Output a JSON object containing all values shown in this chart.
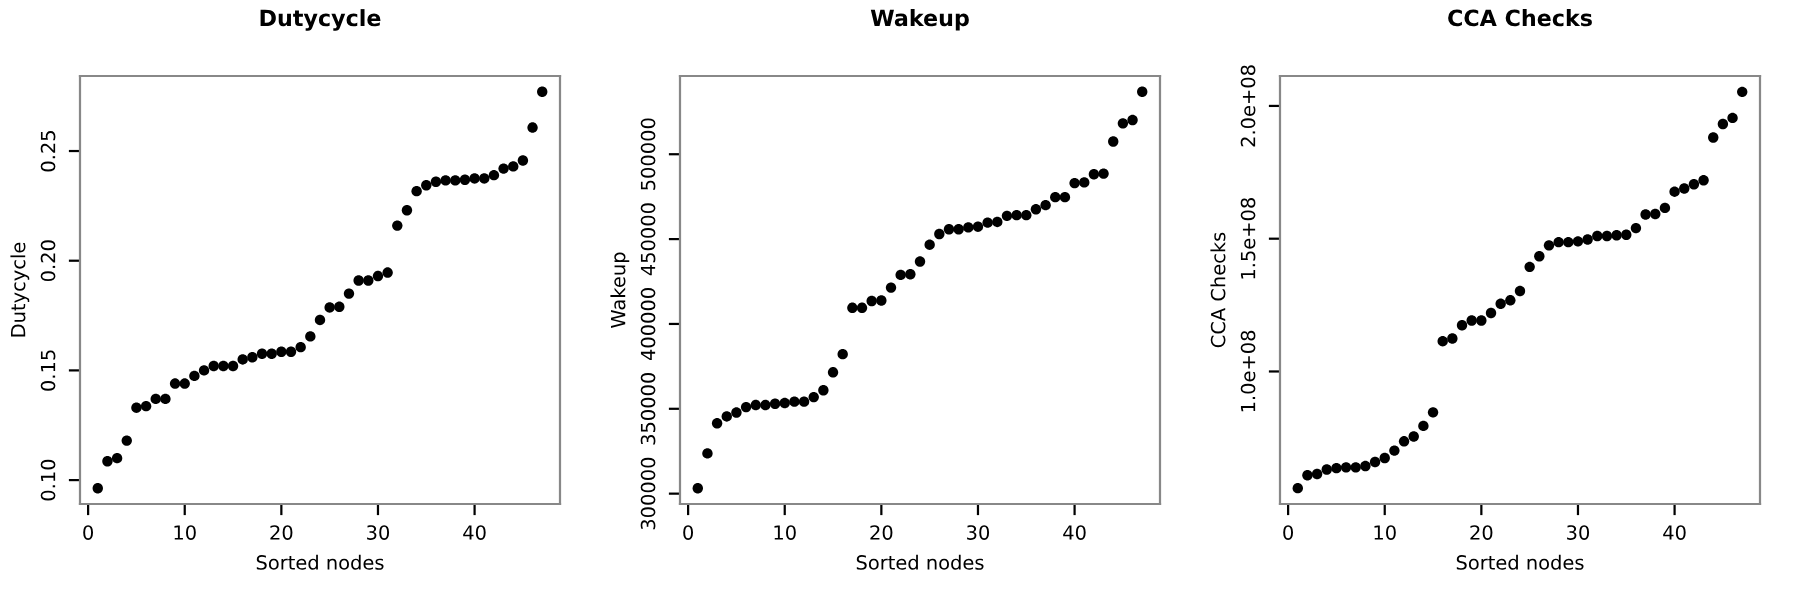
{
  "chart_data": [
    {
      "type": "scatter",
      "title": "Dutycycle",
      "xlabel": "Sorted nodes",
      "ylabel": "Dutycycle",
      "marker": "circle",
      "grid": false,
      "legend": false,
      "x": [
        1,
        2,
        3,
        4,
        5,
        6,
        7,
        8,
        9,
        10,
        11,
        12,
        13,
        14,
        15,
        16,
        17,
        18,
        19,
        20,
        21,
        22,
        23,
        24,
        25,
        26,
        27,
        28,
        29,
        30,
        31,
        32,
        33,
        34,
        35,
        36,
        37,
        38,
        39,
        40,
        41,
        42,
        43,
        44,
        45,
        46,
        47
      ],
      "series": [
        {
          "color": "#000000",
          "values": [
            0.0963,
            0.1086,
            0.11,
            0.118,
            0.133,
            0.1337,
            0.137,
            0.137,
            0.144,
            0.144,
            0.1475,
            0.15,
            0.152,
            0.152,
            0.152,
            0.155,
            0.156,
            0.1576,
            0.1576,
            0.1585,
            0.1585,
            0.1606,
            0.1655,
            0.173,
            0.1787,
            0.179,
            0.185,
            0.191,
            0.191,
            0.193,
            0.1946,
            0.216,
            0.223,
            0.2317,
            0.2344,
            0.236,
            0.2366,
            0.2366,
            0.2369,
            0.2375,
            0.2375,
            0.239,
            0.242,
            0.243,
            0.2457,
            0.2607,
            0.277
          ]
        }
      ],
      "xlim": [
        -0.84,
        48.84
      ],
      "xticks": [
        0,
        10,
        20,
        30,
        40
      ],
      "ylim": [
        0.0891,
        0.2842
      ],
      "yticks": [
        {
          "value": 0.1,
          "label": "0.10"
        },
        {
          "value": 0.15,
          "label": "0.15"
        },
        {
          "value": 0.2,
          "label": "0.20"
        },
        {
          "value": 0.25,
          "label": "0.25"
        }
      ]
    },
    {
      "type": "scatter",
      "title": "Wakeup",
      "xlabel": "Sorted nodes",
      "ylabel": "Wakeup",
      "marker": "circle",
      "grid": false,
      "legend": false,
      "x": [
        1,
        2,
        3,
        4,
        5,
        6,
        7,
        8,
        9,
        10,
        11,
        12,
        13,
        14,
        15,
        16,
        17,
        18,
        19,
        20,
        21,
        22,
        23,
        24,
        25,
        26,
        27,
        28,
        29,
        30,
        31,
        32,
        33,
        34,
        35,
        36,
        37,
        38,
        39,
        40,
        41,
        42,
        43,
        44,
        45,
        46,
        47
      ],
      "series": [
        {
          "color": "#000000",
          "values": [
            303200,
            323700,
            341500,
            345500,
            347800,
            351000,
            352200,
            352200,
            353000,
            353400,
            354200,
            354200,
            356900,
            360900,
            371500,
            382200,
            409500,
            409500,
            413500,
            413800,
            421400,
            428900,
            429300,
            436800,
            446700,
            453000,
            455800,
            455800,
            456900,
            457300,
            459700,
            460100,
            463700,
            464100,
            464100,
            467600,
            470000,
            474700,
            474700,
            483000,
            483400,
            488200,
            488600,
            507500,
            518200,
            520200,
            536800
          ]
        }
      ],
      "xlim": [
        -0.84,
        48.84
      ],
      "xticks": [
        0,
        10,
        20,
        30,
        40
      ],
      "ylim": [
        293900,
        546100
      ],
      "yticks": [
        300000,
        350000,
        400000,
        450000,
        500000
      ]
    },
    {
      "type": "scatter",
      "title": "CCA Checks",
      "xlabel": "Sorted nodes",
      "ylabel": "CCA Checks",
      "marker": "circle",
      "grid": false,
      "legend": false,
      "x": [
        1,
        2,
        3,
        4,
        5,
        6,
        7,
        8,
        9,
        10,
        11,
        12,
        13,
        14,
        15,
        16,
        17,
        18,
        19,
        20,
        21,
        22,
        23,
        24,
        25,
        26,
        27,
        28,
        29,
        30,
        31,
        32,
        33,
        34,
        35,
        36,
        37,
        38,
        39,
        40,
        41,
        42,
        43,
        44,
        45,
        46,
        47
      ],
      "series": [
        {
          "color": "#000000",
          "values": [
            56060000,
            60900000,
            61400000,
            63100000,
            63600000,
            63900000,
            63900000,
            64400000,
            65900000,
            67400000,
            70200000,
            73700000,
            75500000,
            79500000,
            84600000,
            111400000,
            112400000,
            117400000,
            119200000,
            119200000,
            122000000,
            125500000,
            126800000,
            130300000,
            139400000,
            143400000,
            147500000,
            148700000,
            148700000,
            149000000,
            149700000,
            151000000,
            151000000,
            151300000,
            151500000,
            154000000,
            159100000,
            159300000,
            161600000,
            167700000,
            168900000,
            170500000,
            172000000,
            188100000,
            193200000,
            195500000,
            205300000
          ]
        }
      ],
      "xlim": [
        -0.84,
        48.84
      ],
      "xticks": [
        0,
        10,
        20,
        30,
        40
      ],
      "ylim": [
        50090000,
        211270000
      ],
      "yticks": [
        {
          "value": 100000000,
          "label": "1.0e+08"
        },
        {
          "value": 150000000,
          "label": "1.5e+08"
        },
        {
          "value": 200000000,
          "label": "2.0e+08"
        }
      ]
    }
  ]
}
